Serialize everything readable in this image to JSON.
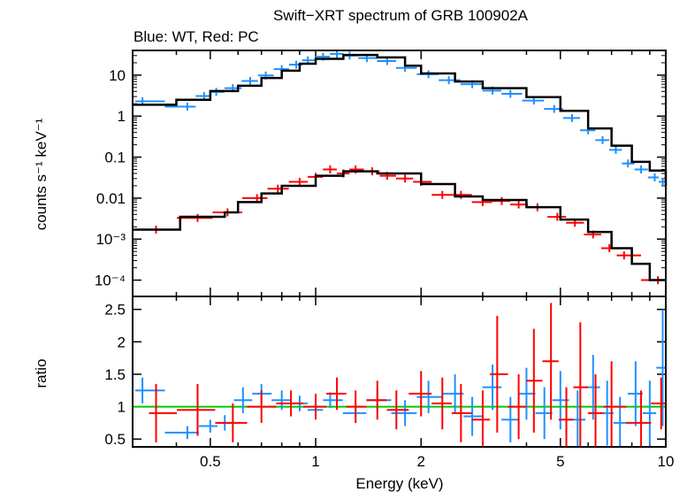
{
  "chart_data": {
    "type": "scatter",
    "title": "Swift−XRT spectrum of GRB 100902A",
    "subtitle": "Blue: WT, Red: PC",
    "xlabel": "Energy (keV)",
    "xscale": "log",
    "xlim": [
      0.3,
      10
    ],
    "x_ticks": [
      {
        "v": 0.5,
        "label": "0.5"
      },
      {
        "v": 1,
        "label": "1"
      },
      {
        "v": 2,
        "label": "2"
      },
      {
        "v": 5,
        "label": "5"
      },
      {
        "v": 10,
        "label": "10"
      }
    ],
    "colors": {
      "wt": "#1e90ff",
      "pc": "#ff0000",
      "model": "#000000",
      "unity": "#00cc00"
    },
    "panels": [
      {
        "name": "spectrum",
        "ylabel": "counts s⁻¹ keV⁻¹",
        "yscale": "log",
        "ylim": [
          4e-05,
          40
        ],
        "y_ticks": [
          {
            "v": 10,
            "label": "10"
          },
          {
            "v": 1,
            "label": "1"
          },
          {
            "v": 0.1,
            "label": "0.1"
          },
          {
            "v": 0.01,
            "label": "0.01"
          },
          {
            "v": 0.001,
            "label": "10⁻³"
          },
          {
            "v": 0.0001,
            "label": "10⁻⁴"
          }
        ],
        "series": [
          {
            "name": "WT model",
            "kind": "step",
            "color": "#000000",
            "points": [
              [
                0.3,
                1.9
              ],
              [
                0.4,
                2.5
              ],
              [
                0.5,
                4.1
              ],
              [
                0.6,
                5.5
              ],
              [
                0.7,
                8.5
              ],
              [
                0.8,
                12.8
              ],
              [
                0.9,
                19
              ],
              [
                1.0,
                25
              ],
              [
                1.2,
                31
              ],
              [
                1.5,
                27
              ],
              [
                1.8,
                17
              ],
              [
                2.0,
                11
              ],
              [
                2.5,
                7
              ],
              [
                3.0,
                4.8
              ],
              [
                4.0,
                2.9
              ],
              [
                5.0,
                1.35
              ],
              [
                6.0,
                0.5
              ],
              [
                7.0,
                0.19
              ],
              [
                8.0,
                0.077
              ],
              [
                9.0,
                0.047
              ],
              [
                10.0,
                0.02
              ]
            ]
          },
          {
            "name": "PC model",
            "kind": "step",
            "color": "#000000",
            "points": [
              [
                0.3,
                0.0017
              ],
              [
                0.41,
                0.0035
              ],
              [
                0.55,
                0.0045
              ],
              [
                0.6,
                0.008
              ],
              [
                0.7,
                0.013
              ],
              [
                0.8,
                0.02
              ],
              [
                1.0,
                0.035
              ],
              [
                1.2,
                0.045
              ],
              [
                1.5,
                0.04
              ],
              [
                2.0,
                0.022
              ],
              [
                2.5,
                0.011
              ],
              [
                3.0,
                0.009
              ],
              [
                4.0,
                0.006
              ],
              [
                5.0,
                0.003
              ],
              [
                6.0,
                0.0015
              ],
              [
                7.0,
                0.0006
              ],
              [
                8.0,
                0.00025
              ],
              [
                9.0,
                0.0001
              ],
              [
                10.0,
                0.0001
              ]
            ]
          },
          {
            "name": "WT",
            "kind": "data",
            "color": "#1e90ff",
            "points": [
              [
                0.32,
                2.3
              ],
              [
                0.43,
                1.7
              ],
              [
                0.48,
                3.1
              ],
              [
                0.52,
                3.9
              ],
              [
                0.58,
                4.8
              ],
              [
                0.65,
                7.2
              ],
              [
                0.72,
                9.8
              ],
              [
                0.8,
                14
              ],
              [
                0.88,
                18
              ],
              [
                0.95,
                23
              ],
              [
                1.05,
                28
              ],
              [
                1.15,
                33
              ],
              [
                1.25,
                30
              ],
              [
                1.4,
                26
              ],
              [
                1.6,
                22
              ],
              [
                1.8,
                15
              ],
              [
                2.1,
                10.5
              ],
              [
                2.4,
                7.5
              ],
              [
                2.8,
                6
              ],
              [
                3.2,
                4.2
              ],
              [
                3.6,
                3.5
              ],
              [
                4.2,
                2.4
              ],
              [
                4.8,
                1.5
              ],
              [
                5.4,
                0.9
              ],
              [
                6.0,
                0.45
              ],
              [
                6.6,
                0.26
              ],
              [
                7.2,
                0.15
              ],
              [
                7.8,
                0.07
              ],
              [
                8.5,
                0.05
              ],
              [
                9.3,
                0.032
              ],
              [
                9.8,
                0.025
              ]
            ]
          },
          {
            "name": "PC",
            "kind": "data",
            "color": "#ff0000",
            "points": [
              [
                0.35,
                0.0017
              ],
              [
                0.46,
                0.0033
              ],
              [
                0.56,
                0.0045
              ],
              [
                0.68,
                0.01
              ],
              [
                0.78,
                0.017
              ],
              [
                0.9,
                0.025
              ],
              [
                1.0,
                0.033
              ],
              [
                1.1,
                0.05
              ],
              [
                1.2,
                0.04
              ],
              [
                1.3,
                0.05
              ],
              [
                1.45,
                0.045
              ],
              [
                1.6,
                0.035
              ],
              [
                1.8,
                0.03
              ],
              [
                2.0,
                0.025
              ],
              [
                2.3,
                0.012
              ],
              [
                2.6,
                0.012
              ],
              [
                3.0,
                0.008
              ],
              [
                3.4,
                0.0085
              ],
              [
                3.8,
                0.007
              ],
              [
                4.3,
                0.006
              ],
              [
                4.9,
                0.0035
              ],
              [
                5.5,
                0.0025
              ],
              [
                6.2,
                0.0013
              ],
              [
                6.9,
                0.0006
              ],
              [
                7.6,
                0.0004
              ],
              [
                9.5,
                0.0001
              ]
            ]
          }
        ]
      },
      {
        "name": "ratio",
        "ylabel": "ratio",
        "yscale": "linear",
        "ylim": [
          0.38,
          2.7
        ],
        "y_ticks": [
          {
            "v": 0.5,
            "label": "0.5"
          },
          {
            "v": 1,
            "label": "1"
          },
          {
            "v": 1.5,
            "label": "1.5"
          },
          {
            "v": 2,
            "label": "2"
          },
          {
            "v": 2.5,
            "label": "2.5"
          }
        ],
        "series": [
          {
            "name": "WT ratio",
            "kind": "data",
            "color": "#1e90ff",
            "points": [
              [
                0.32,
                1.25,
                0.2
              ],
              [
                0.43,
                0.6,
                0.1
              ],
              [
                0.5,
                0.7,
                0.1
              ],
              [
                0.55,
                0.75,
                0.12
              ],
              [
                0.62,
                1.1,
                0.2
              ],
              [
                0.7,
                1.2,
                0.15
              ],
              [
                0.8,
                1.1,
                0.15
              ],
              [
                0.9,
                1.05,
                0.12
              ],
              [
                1.0,
                0.95,
                0.1
              ],
              [
                1.1,
                1.1,
                0.12
              ],
              [
                1.3,
                0.9,
                0.15
              ],
              [
                1.5,
                1.1,
                0.2
              ],
              [
                1.8,
                0.9,
                0.2
              ],
              [
                2.1,
                1.15,
                0.25
              ],
              [
                2.5,
                1.2,
                0.3
              ],
              [
                2.8,
                0.85,
                0.3
              ],
              [
                3.2,
                1.3,
                0.35
              ],
              [
                3.6,
                0.8,
                0.35
              ],
              [
                4.0,
                1.2,
                0.4
              ],
              [
                4.5,
                0.9,
                0.4
              ],
              [
                5.0,
                1.1,
                0.45
              ],
              [
                5.6,
                0.8,
                0.45
              ],
              [
                6.2,
                1.3,
                0.5
              ],
              [
                6.8,
                0.9,
                0.5
              ],
              [
                7.4,
                0.75,
                0.4
              ],
              [
                8.2,
                1.2,
                0.5
              ],
              [
                9.0,
                0.9,
                0.5
              ],
              [
                9.8,
                1.6,
                0.9
              ]
            ]
          },
          {
            "name": "PC ratio",
            "kind": "data",
            "color": "#ff0000",
            "points": [
              [
                0.35,
                0.9,
                0.45
              ],
              [
                0.46,
                0.95,
                0.4
              ],
              [
                0.58,
                0.75,
                0.3
              ],
              [
                0.7,
                1.0,
                0.25
              ],
              [
                0.85,
                1.05,
                0.2
              ],
              [
                1.0,
                1.0,
                0.2
              ],
              [
                1.15,
                1.2,
                0.25
              ],
              [
                1.3,
                1.0,
                0.25
              ],
              [
                1.5,
                1.1,
                0.3
              ],
              [
                1.7,
                0.95,
                0.3
              ],
              [
                2.0,
                1.2,
                0.35
              ],
              [
                2.3,
                1.05,
                0.4
              ],
              [
                2.6,
                0.9,
                0.45
              ],
              [
                3.0,
                0.8,
                0.45
              ],
              [
                3.3,
                1.5,
                0.9
              ],
              [
                3.8,
                1.0,
                0.5
              ],
              [
                4.2,
                1.4,
                0.8
              ],
              [
                4.7,
                1.7,
                0.9
              ],
              [
                5.2,
                0.8,
                0.5
              ],
              [
                5.7,
                1.3,
                1.0
              ],
              [
                6.3,
                0.9,
                0.6
              ],
              [
                7.0,
                1.0,
                0.7
              ],
              [
                8.5,
                0.75,
                0.5
              ],
              [
                9.7,
                1.05,
                0.4
              ]
            ]
          }
        ]
      }
    ]
  }
}
